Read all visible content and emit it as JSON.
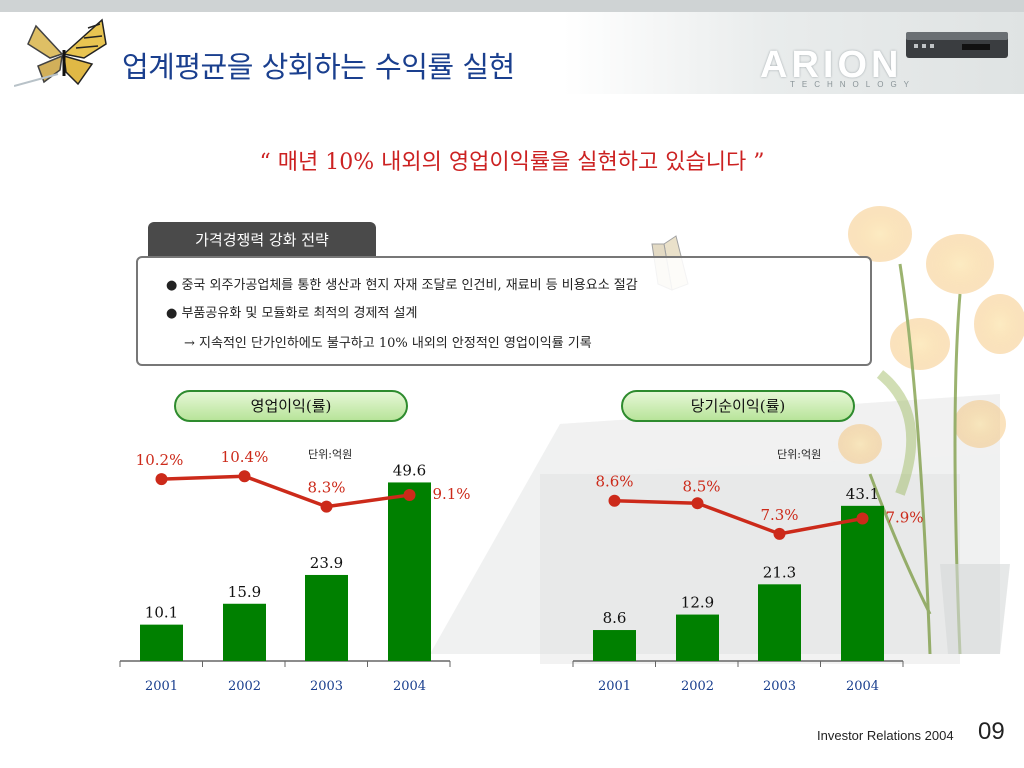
{
  "header": {
    "title": "업계평균을 상회하는 수익률 실현",
    "logo_text": "ARION",
    "logo_subtext": "TECHNOLOGY"
  },
  "quote": "“ 매년 10% 내외의 영업이익률을 실현하고 있습니다 ”",
  "strategy_box": {
    "tab_label": "가격경쟁력 강화 전략",
    "bullets": [
      "● 중국 외주가공업체를 통한 생산과 현지 자재 조달로 인건비, 재료비 등 비용요소 절감",
      "● 부품공유화 및 모듈화로 최적의 경제적 설계",
      "→ 지속적인 단가인하에도 불구하고 10% 내외의 안정적인 영업이익률 기록"
    ]
  },
  "colors": {
    "title": "#1a3f8e",
    "quote": "#cc2222",
    "bar": "#008000",
    "line": "#cc2a1a",
    "year_label": "#1a3f8e"
  },
  "chart_data": [
    {
      "type": "bar",
      "title": "영업이익(률)",
      "unit_label": "단위:억원",
      "categories": [
        "2001",
        "2002",
        "2003",
        "2004"
      ],
      "series": [
        {
          "values": [
            10.1,
            15.9,
            23.9,
            49.6
          ],
          "labels": [
            "10.1",
            "15.9",
            "23.9",
            "49.6"
          ]
        },
        {
          "type": "line",
          "values": [
            10.2,
            10.4,
            8.3,
            9.1
          ],
          "labels": [
            "10.2%",
            "10.4%",
            "8.3%",
            "9.1%"
          ]
        }
      ]
    },
    {
      "type": "bar",
      "title": "당기순이익(률)",
      "unit_label": "단위:억원",
      "categories": [
        "2001",
        "2002",
        "2003",
        "2004"
      ],
      "series": [
        {
          "values": [
            8.6,
            12.9,
            21.3,
            43.1
          ],
          "labels": [
            "8.6",
            "12.9",
            "21.3",
            "43.1"
          ]
        },
        {
          "type": "line",
          "values": [
            8.6,
            8.5,
            7.3,
            7.9
          ],
          "labels": [
            "8.6%",
            "8.5%",
            "7.3%",
            "7.9%"
          ]
        }
      ]
    }
  ],
  "footer": {
    "text": "Investor Relations 2004",
    "page": "09"
  }
}
